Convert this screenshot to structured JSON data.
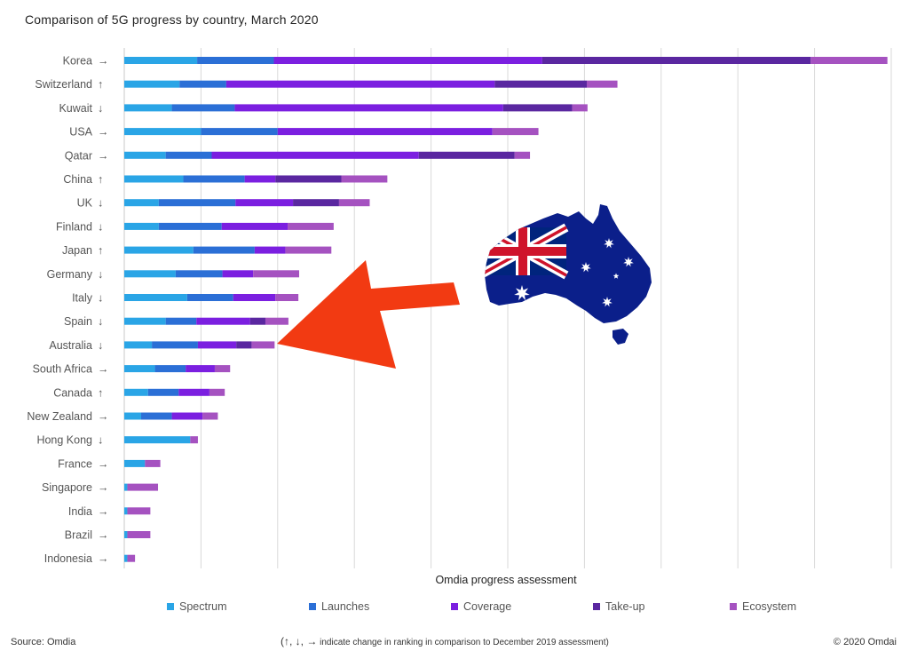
{
  "chart_data": {
    "type": "bar",
    "orientation": "horizontal",
    "stacked": true,
    "title": "Comparison of 5G progress by country, March 2020",
    "xlabel": "Omdia progress assessment",
    "ylabel": "",
    "grid": true,
    "legend_position": "bottom",
    "categories": [
      {
        "name": "Korea",
        "arrow": "→"
      },
      {
        "name": "Switzerland",
        "arrow": "↑"
      },
      {
        "name": "Kuwait",
        "arrow": "↓"
      },
      {
        "name": "USA",
        "arrow": "→"
      },
      {
        "name": "Qatar",
        "arrow": "→"
      },
      {
        "name": "China",
        "arrow": "↑"
      },
      {
        "name": "UK",
        "arrow": "↓"
      },
      {
        "name": "Finland",
        "arrow": "↓"
      },
      {
        "name": "Japan",
        "arrow": "↑"
      },
      {
        "name": "Germany",
        "arrow": "↓"
      },
      {
        "name": "Italy",
        "arrow": "↓"
      },
      {
        "name": "Spain",
        "arrow": "↓"
      },
      {
        "name": "Australia",
        "arrow": "↓"
      },
      {
        "name": "South Africa",
        "arrow": "→"
      },
      {
        "name": "Canada",
        "arrow": "↑"
      },
      {
        "name": "New Zealand",
        "arrow": "→"
      },
      {
        "name": "Hong Kong",
        "arrow": "↓"
      },
      {
        "name": "France",
        "arrow": "→"
      },
      {
        "name": "Singapore",
        "arrow": "→"
      },
      {
        "name": "India",
        "arrow": "→"
      },
      {
        "name": "Brazil",
        "arrow": "→"
      },
      {
        "name": "Indonesia",
        "arrow": "→"
      }
    ],
    "series": [
      {
        "name": "Spectrum",
        "color": "#2aa5e6",
        "values": [
          0.95,
          0.72,
          0.62,
          1.0,
          0.54,
          0.77,
          0.45,
          0.45,
          0.9,
          0.67,
          0.82,
          0.54,
          0.36,
          0.4,
          0.31,
          0.22,
          0.86,
          0.27,
          0.04,
          0.04,
          0.04,
          0.04
        ]
      },
      {
        "name": "Launches",
        "color": "#2b6fd6",
        "values": [
          1.0,
          0.61,
          0.82,
          1.0,
          0.6,
          0.8,
          1.0,
          0.82,
          0.8,
          0.61,
          0.6,
          0.4,
          0.6,
          0.4,
          0.4,
          0.4,
          0.0,
          0.0,
          0.0,
          0.0,
          0.0,
          0.0
        ]
      },
      {
        "name": "Coverage",
        "color": "#7b1fe0",
        "values": [
          3.5,
          3.5,
          3.5,
          2.8,
          2.7,
          0.4,
          0.75,
          0.86,
          0.4,
          0.4,
          0.55,
          0.7,
          0.5,
          0.38,
          0.4,
          0.4,
          0.0,
          0.0,
          0.0,
          0.0,
          0.0,
          0.0
        ]
      },
      {
        "name": "Take-up",
        "color": "#5a27a0",
        "values": [
          3.5,
          1.2,
          0.9,
          0.0,
          1.25,
          0.86,
          0.6,
          0.0,
          0.0,
          0.0,
          0.0,
          0.2,
          0.2,
          0.0,
          0.0,
          0.0,
          0.0,
          0.0,
          0.0,
          0.0,
          0.0,
          0.0
        ]
      },
      {
        "name": "Ecosystem",
        "color": "#a552c0",
        "values": [
          1.0,
          0.4,
          0.2,
          0.6,
          0.2,
          0.6,
          0.4,
          0.6,
          0.6,
          0.6,
          0.3,
          0.3,
          0.3,
          0.2,
          0.2,
          0.2,
          0.1,
          0.2,
          0.4,
          0.3,
          0.3,
          0.1
        ]
      }
    ],
    "xlim": [
      0,
      10
    ],
    "gridline_count": 10
  },
  "legend": {
    "items": [
      "Spectrum",
      "Launches",
      "Coverage",
      "Take-up",
      "Ecosystem"
    ]
  },
  "footer": {
    "source": "Source: Omdia",
    "note_arrows": "(↑, ↓, →",
    "note_text": " indicate change in ranking in comparison to December 2019 assessment)",
    "copyright": "© 2020 Omdai"
  },
  "overlay": {
    "arrow_color": "#f23a12",
    "highlighted_category": "Australia",
    "flag_colors": {
      "blue": "#00247d",
      "red": "#cf142b",
      "white": "#ffffff"
    },
    "map_fill": "#0b1f8a"
  }
}
